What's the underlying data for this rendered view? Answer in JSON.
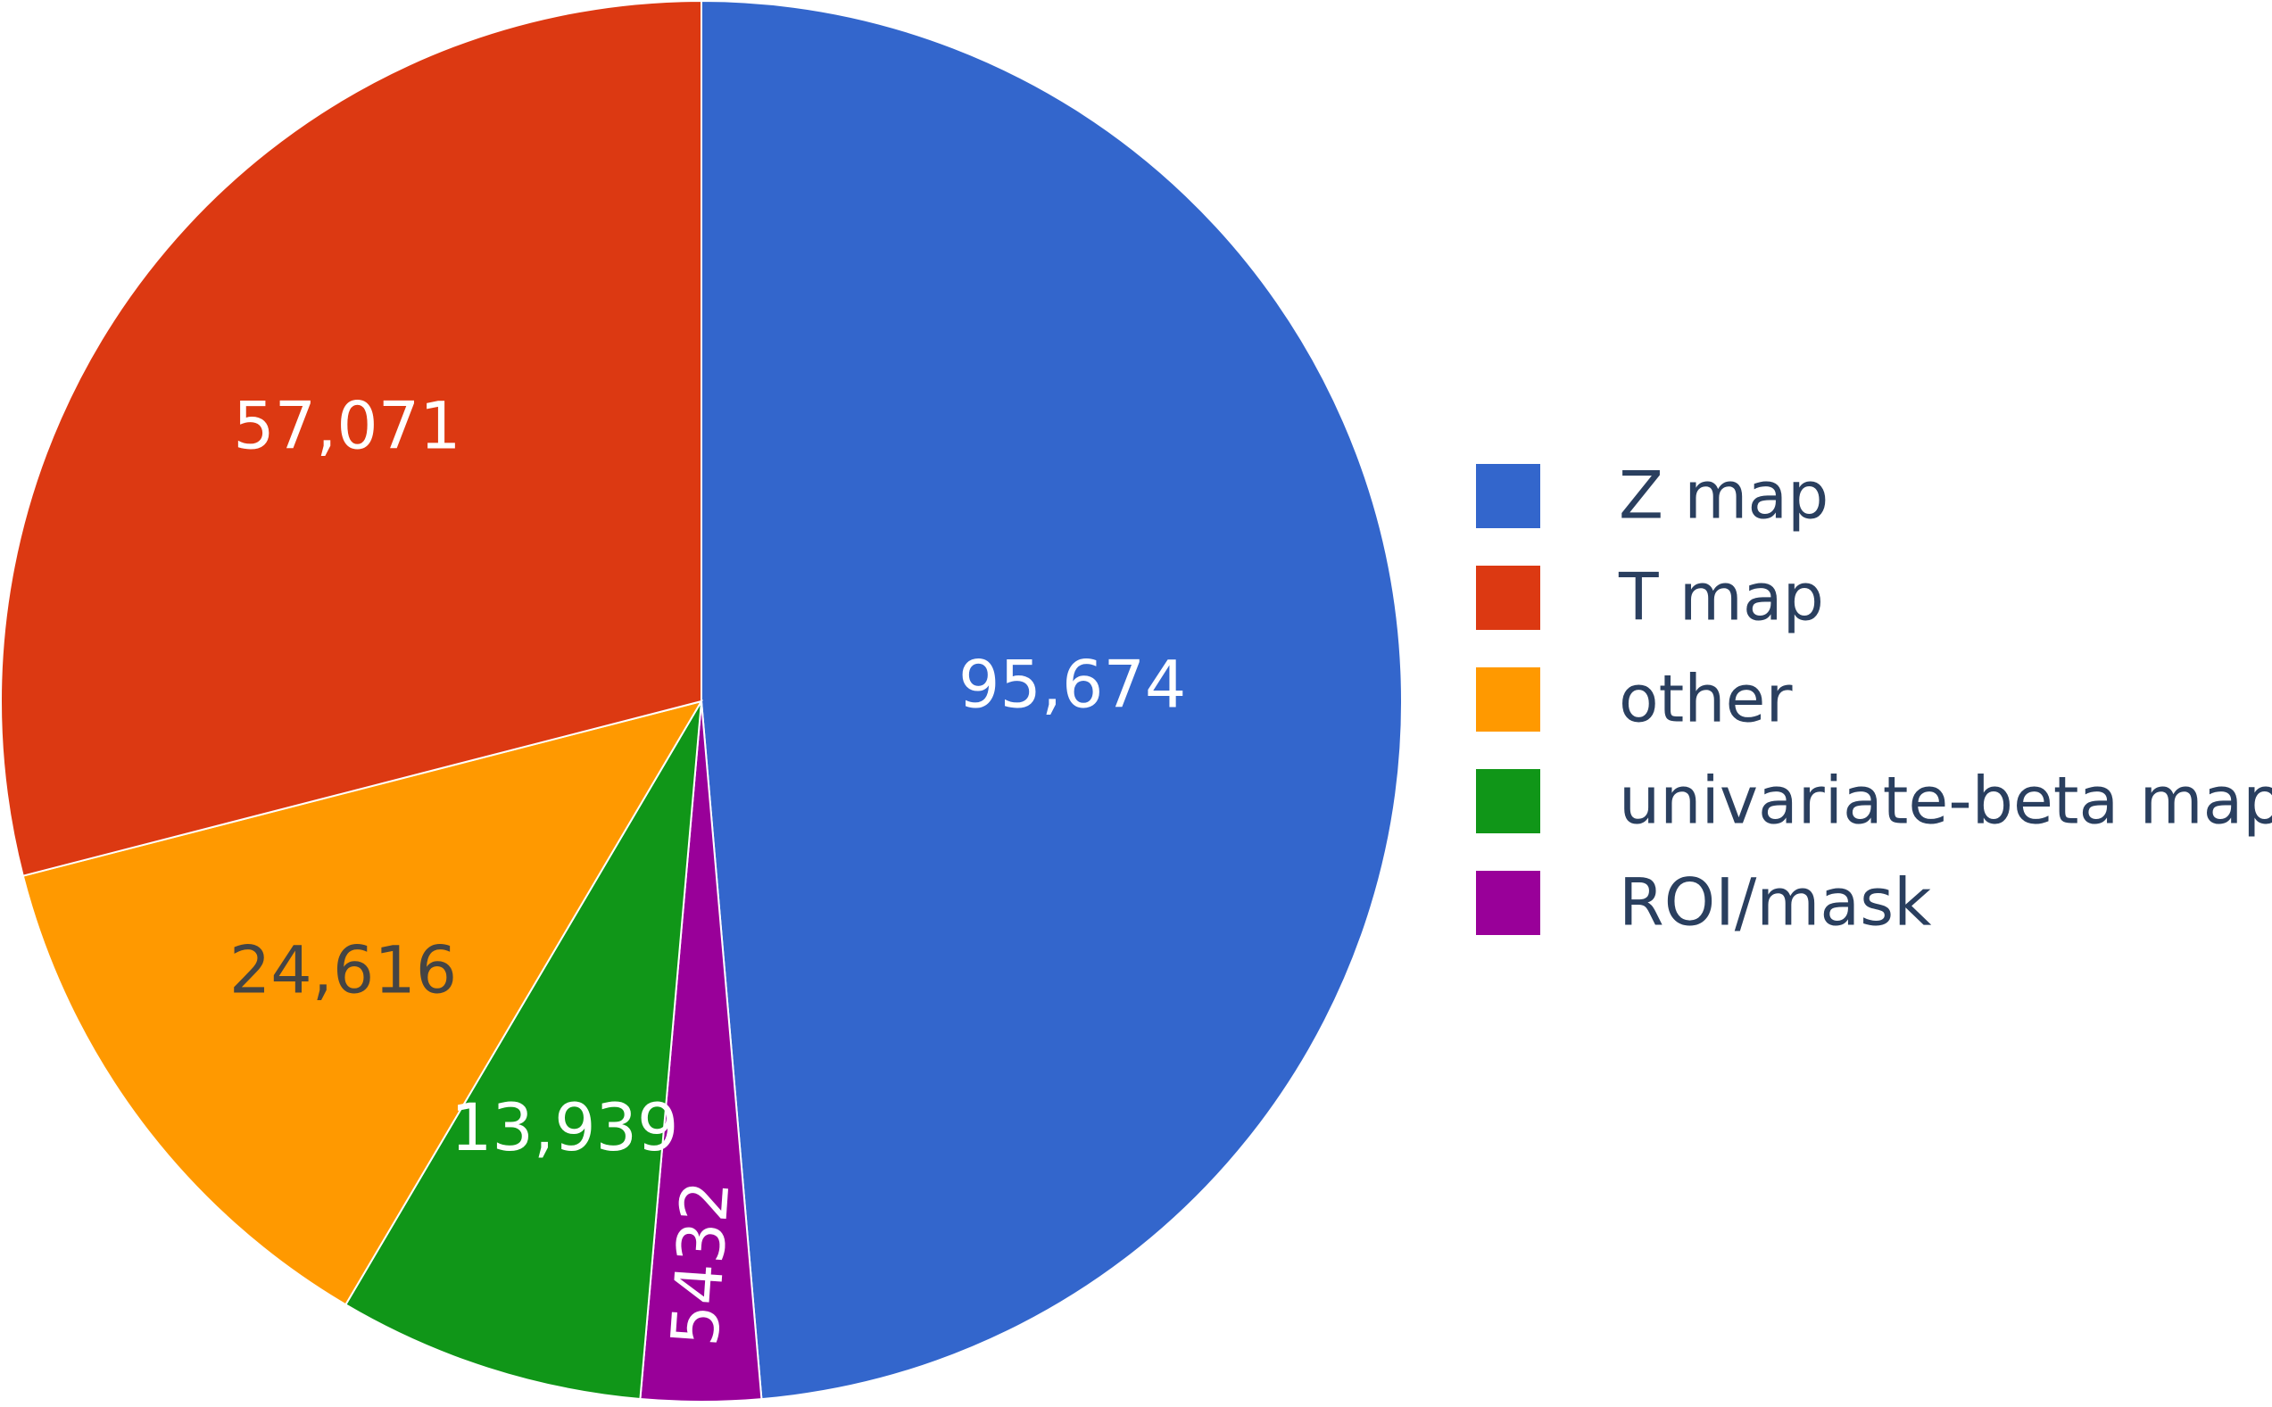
{
  "chart_data": {
    "type": "pie",
    "title": "",
    "slices": [
      {
        "label": "Z map",
        "value": 95674,
        "display": "95,674",
        "color": "#3366cc",
        "text_color": "#ffffff"
      },
      {
        "label": "ROI/mask",
        "value": 5432,
        "display": "5432",
        "color": "#990099",
        "text_color": "#ffffff"
      },
      {
        "label": "univariate-beta map",
        "value": 13939,
        "display": "13,939",
        "color": "#109618",
        "text_color": "#ffffff"
      },
      {
        "label": "other",
        "value": 24616,
        "display": "24,616",
        "color": "#ff9900",
        "text_color": "#444444"
      },
      {
        "label": "T map",
        "value": 57071,
        "display": "57,071",
        "color": "#dc3912",
        "text_color": "#ffffff"
      }
    ],
    "start_angle_deg": 0,
    "direction": "clockwise",
    "legend": {
      "position": "right",
      "items": [
        "Z map",
        "T map",
        "other",
        "univariate-beta map",
        "ROI/mask"
      ]
    }
  }
}
